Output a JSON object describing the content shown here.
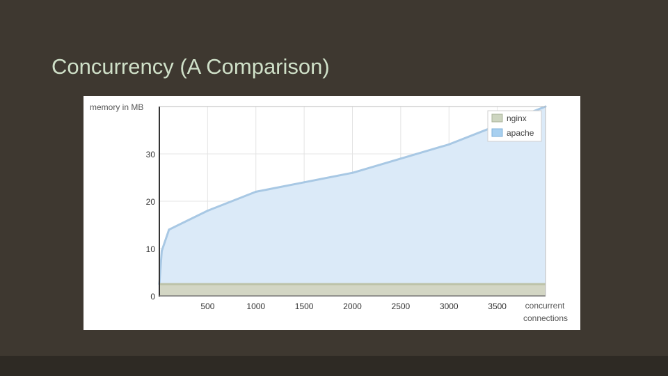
{
  "slide": {
    "title": "Concurrency (A Comparison)"
  },
  "chart_data": {
    "type": "area",
    "title": "",
    "ylabel": "memory in MB",
    "xlabel_lines": [
      "concurrent",
      "connections"
    ],
    "xlim": [
      0,
      4000
    ],
    "ylim": [
      0,
      40
    ],
    "x_ticks": [
      500,
      1000,
      1500,
      2000,
      2500,
      3000,
      3500
    ],
    "y_ticks": [
      0,
      10,
      20,
      30
    ],
    "grid": true,
    "legend_position": "top-right",
    "series": [
      {
        "name": "nginx",
        "color": "#cdd5c0",
        "x": [
          0,
          4000
        ],
        "values": [
          2.5,
          2.5
        ]
      },
      {
        "name": "apache",
        "color": "#a8d0f0",
        "x": [
          0,
          25,
          100,
          500,
          1000,
          1500,
          2000,
          2500,
          3000,
          3500,
          4000
        ],
        "values": [
          2.5,
          9.5,
          14,
          18,
          22,
          24,
          26,
          29,
          32,
          36,
          40
        ]
      }
    ]
  }
}
